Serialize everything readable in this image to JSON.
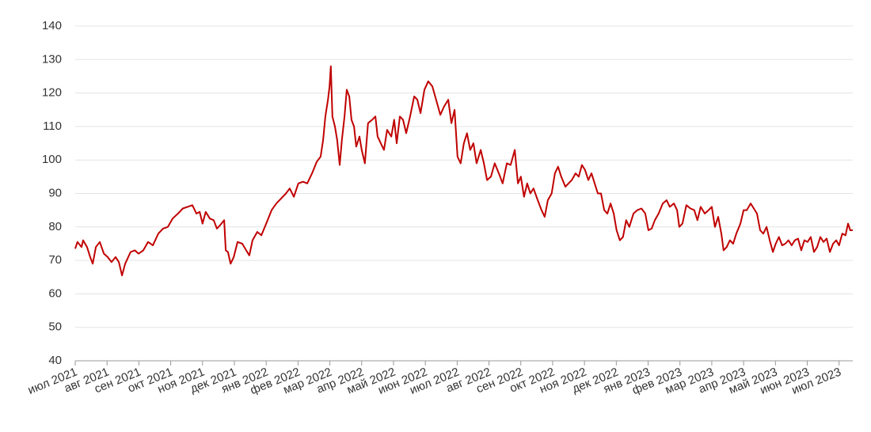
{
  "chart_data": {
    "type": "line",
    "color": "#c00000",
    "grid": true,
    "xlim": [
      0,
      24.43
    ],
    "ylim": [
      40,
      140
    ],
    "yticks": [
      40,
      50,
      60,
      70,
      80,
      90,
      100,
      110,
      120,
      130,
      140
    ],
    "xticks": [
      {
        "value": 0,
        "label": "июл 2021"
      },
      {
        "value": 1,
        "label": "авг 2021"
      },
      {
        "value": 2,
        "label": "сен 2021"
      },
      {
        "value": 3,
        "label": "окт 2021"
      },
      {
        "value": 4,
        "label": "ноя 2021"
      },
      {
        "value": 5,
        "label": "дек 2021"
      },
      {
        "value": 6,
        "label": "янв 2022"
      },
      {
        "value": 7,
        "label": "фев 2022"
      },
      {
        "value": 8,
        "label": "мар 2022"
      },
      {
        "value": 9,
        "label": "апр 2022"
      },
      {
        "value": 10,
        "label": "май 2022"
      },
      {
        "value": 11,
        "label": "июн 2022"
      },
      {
        "value": 12,
        "label": "июл 2022"
      },
      {
        "value": 13,
        "label": "авг 2022"
      },
      {
        "value": 14,
        "label": "сен 2022"
      },
      {
        "value": 15,
        "label": "окт 2022"
      },
      {
        "value": 16,
        "label": "ноя 2022"
      },
      {
        "value": 17,
        "label": "дек 2022"
      },
      {
        "value": 18,
        "label": "янв 2023"
      },
      {
        "value": 19,
        "label": "фев 2023"
      },
      {
        "value": 20,
        "label": "мар 2023"
      },
      {
        "value": 21,
        "label": "апр 2023"
      },
      {
        "value": 22,
        "label": "май 2023"
      },
      {
        "value": 23,
        "label": "июн 2023"
      },
      {
        "value": 24,
        "label": "июл 2023"
      }
    ],
    "x": [
      0,
      0.07,
      0.2,
      0.25,
      0.37,
      0.47,
      0.55,
      0.65,
      0.77,
      0.9,
      1.02,
      1.14,
      1.27,
      1.37,
      1.47,
      1.57,
      1.74,
      1.87,
      1.99,
      2.14,
      2.29,
      2.44,
      2.61,
      2.76,
      2.91,
      3.06,
      3.23,
      3.38,
      3.53,
      3.68,
      3.81,
      3.91,
      4.0,
      4.1,
      4.23,
      4.35,
      4.45,
      4.55,
      4.68,
      4.73,
      4.8,
      4.88,
      4.98,
      5.1,
      5.25,
      5.37,
      5.47,
      5.57,
      5.72,
      5.85,
      6.0,
      6.17,
      6.32,
      6.47,
      6.62,
      6.74,
      6.87,
      7.01,
      7.16,
      7.29,
      7.44,
      7.59,
      7.71,
      7.79,
      7.86,
      7.94,
      7.99,
      8.03,
      8.08,
      8.16,
      8.23,
      8.31,
      8.38,
      8.46,
      8.53,
      8.61,
      8.68,
      8.76,
      8.83,
      8.93,
      9.0,
      9.1,
      9.2,
      9.33,
      9.43,
      9.5,
      9.6,
      9.7,
      9.8,
      9.93,
      10.02,
      10.1,
      10.2,
      10.3,
      10.4,
      10.52,
      10.65,
      10.75,
      10.85,
      10.97,
      11.09,
      11.22,
      11.34,
      11.47,
      11.59,
      11.72,
      11.82,
      11.92,
      12.01,
      12.11,
      12.21,
      12.31,
      12.41,
      12.51,
      12.61,
      12.74,
      12.84,
      12.94,
      13.06,
      13.18,
      13.31,
      13.43,
      13.56,
      13.68,
      13.81,
      13.91,
      14.0,
      14.1,
      14.2,
      14.3,
      14.4,
      14.53,
      14.65,
      14.75,
      14.85,
      14.97,
      15.07,
      15.17,
      15.27,
      15.4,
      15.5,
      15.6,
      15.72,
      15.82,
      15.92,
      16.02,
      16.12,
      16.22,
      16.32,
      16.42,
      16.52,
      16.62,
      16.72,
      16.82,
      16.92,
      17.01,
      17.11,
      17.21,
      17.31,
      17.41,
      17.54,
      17.66,
      17.79,
      17.91,
      18.01,
      18.11,
      18.21,
      18.33,
      18.46,
      18.58,
      18.68,
      18.81,
      18.91,
      18.98,
      19.08,
      19.2,
      19.33,
      19.45,
      19.55,
      19.65,
      19.78,
      19.9,
      20.0,
      20.1,
      20.2,
      20.3,
      20.37,
      20.47,
      20.57,
      20.67,
      20.77,
      20.9,
      21.0,
      21.1,
      21.22,
      21.32,
      21.42,
      21.52,
      21.62,
      21.72,
      21.82,
      21.92,
      22.01,
      22.11,
      22.21,
      22.31,
      22.41,
      22.51,
      22.61,
      22.71,
      22.81,
      22.91,
      23.01,
      23.11,
      23.21,
      23.31,
      23.41,
      23.51,
      23.61,
      23.71,
      23.81,
      23.91,
      24.0,
      24.1,
      24.2,
      24.28,
      24.35,
      24.43
    ],
    "values": [
      73.5,
      75.5,
      74,
      76,
      74,
      71,
      69,
      74,
      75.5,
      72,
      71,
      69.5,
      71,
      69.5,
      65.5,
      69,
      72.5,
      73,
      72,
      73,
      75.5,
      74.5,
      78,
      79.5,
      80,
      82.5,
      84,
      85.5,
      86,
      86.5,
      84,
      84.5,
      81,
      84.5,
      82.5,
      82,
      79.5,
      80.5,
      82,
      73,
      72.5,
      69,
      71,
      75.5,
      75,
      73,
      71.5,
      76,
      78.5,
      77.5,
      81,
      85,
      87,
      88.5,
      90,
      91.5,
      89,
      93,
      93.5,
      93,
      96,
      99.5,
      101,
      106,
      113,
      118,
      122,
      128,
      113,
      110,
      106,
      98.5,
      106,
      113,
      121,
      119,
      112,
      110,
      104,
      107,
      103,
      99,
      111,
      112,
      113,
      107,
      105,
      103,
      109,
      107,
      112,
      105,
      113,
      112,
      108,
      113,
      119,
      118,
      114,
      121,
      123.5,
      122,
      118,
      113.5,
      116,
      118,
      111,
      115,
      101,
      99,
      105,
      108,
      103,
      105,
      99,
      103,
      99,
      94,
      95,
      99,
      96,
      93,
      99,
      98.5,
      103,
      93,
      95,
      89,
      93,
      90,
      91.5,
      88,
      85,
      83,
      88,
      90,
      96,
      98,
      95,
      92,
      93,
      94,
      96,
      95,
      98.5,
      97,
      94,
      96,
      93,
      90,
      90,
      85,
      84,
      87,
      84,
      79,
      76,
      77,
      82,
      80,
      84,
      85,
      85.5,
      84,
      79,
      79.5,
      82,
      84,
      87,
      88,
      86,
      87,
      85,
      80,
      81,
      86.5,
      85.5,
      85,
      82,
      86,
      84,
      85,
      86,
      80,
      83,
      78,
      73,
      74,
      76,
      75,
      78,
      81,
      85,
      85,
      87,
      85.5,
      84,
      79,
      78,
      80,
      76,
      72.5,
      75,
      77,
      74.5,
      75,
      76,
      74.5,
      76,
      76.5,
      73,
      76,
      75.5,
      77,
      72.5,
      74,
      77,
      75.5,
      76.5,
      72.5,
      75,
      76,
      74.5,
      78,
      77.5,
      81,
      79,
      79
    ]
  }
}
